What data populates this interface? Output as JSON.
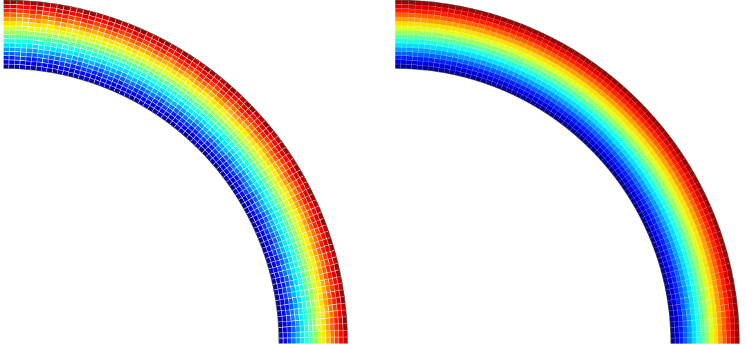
{
  "figure": {
    "description_visible_text": "",
    "panels": [
      {
        "id": "left",
        "pattern": "stripes",
        "colormap": "jet",
        "radial_divisions": 16,
        "angular_divisions": 80
      },
      {
        "id": "right",
        "pattern": "smooth",
        "colormap": "jet",
        "radial_divisions": 16,
        "angular_divisions": 80
      }
    ],
    "colors": {
      "dark_blue": "#00008f",
      "blue": "#0000ff",
      "cyan": "#00ffff",
      "yellow": "#ffff00",
      "red": "#ff0000",
      "dark_red": "#800000",
      "mesh_line": "#ffffff",
      "outline": "#555555"
    }
  }
}
